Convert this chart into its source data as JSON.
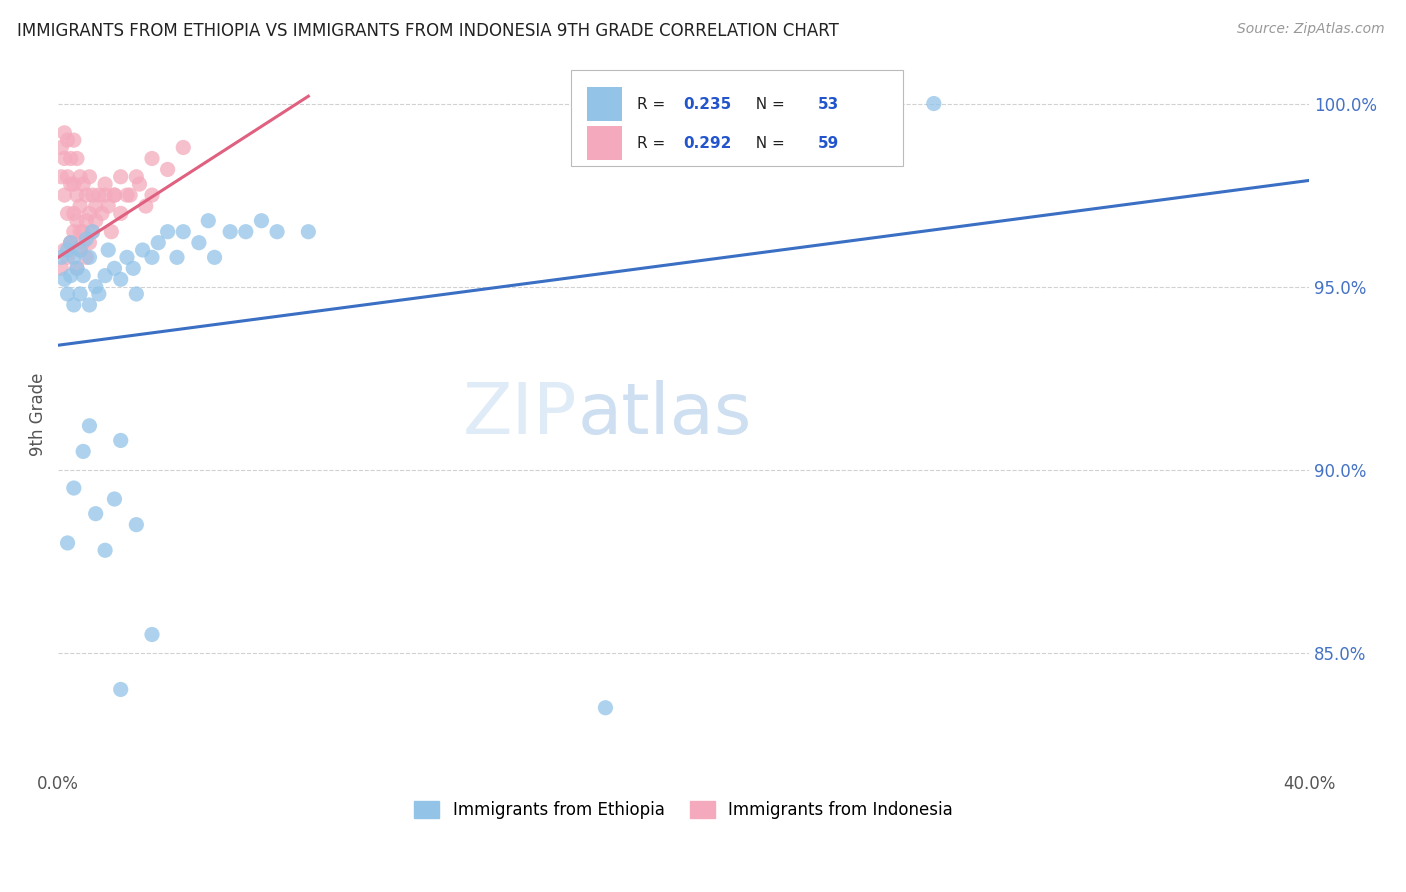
{
  "title": "IMMIGRANTS FROM ETHIOPIA VS IMMIGRANTS FROM INDONESIA 9TH GRADE CORRELATION CHART",
  "source": "Source: ZipAtlas.com",
  "ylabel": "9th Grade",
  "ylabel_right_labels": [
    "100.0%",
    "95.0%",
    "90.0%",
    "85.0%"
  ],
  "ylabel_right_values": [
    1.0,
    0.95,
    0.9,
    0.85
  ],
  "xmin": 0.0,
  "xmax": 0.4,
  "ymin": 0.818,
  "ymax": 1.012,
  "R_ethiopia": 0.235,
  "N_ethiopia": 53,
  "R_indonesia": 0.292,
  "N_indonesia": 59,
  "color_ethiopia": "#93C4E8",
  "color_indonesia": "#F4AABC",
  "line_color_ethiopia": "#3A6FC4",
  "line_color_indonesia": "#E06080",
  "background_color": "#FFFFFF",
  "grid_color": "#CCCCCC",
  "title_color": "#222222",
  "source_color": "#999999",
  "eth_trend_x0": 0.0,
  "eth_trend_y0": 0.934,
  "eth_trend_x1": 0.4,
  "eth_trend_y1": 0.979,
  "ind_trend_x0": 0.0,
  "ind_trend_y0": 0.958,
  "ind_trend_x1": 0.08,
  "ind_trend_y1": 1.002,
  "watermark_zip_color": "#C8DFF5",
  "watermark_atlas_color": "#A0BFE0"
}
